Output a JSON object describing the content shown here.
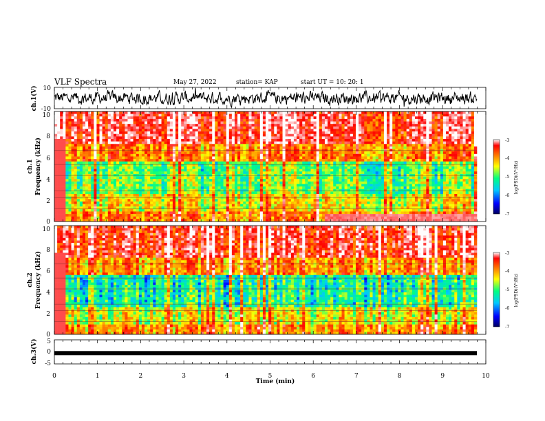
{
  "header": {
    "title": "VLF Spectra",
    "date": "May 27, 2022",
    "station": "station= KAP",
    "start": "start  UT  =   10: 20: 1"
  },
  "chart_data": [
    {
      "type": "line",
      "panel": "ch1-waveform",
      "ylabel": "ch.1(V)",
      "ylim": [
        -10,
        10
      ],
      "ytick_labels": [
        "10",
        "-10"
      ],
      "x_range_min": [
        0,
        9.8
      ],
      "description_values": "noisy voltage trace oscillating roughly between -7 and +7 V"
    },
    {
      "type": "heatmap",
      "panel": "ch1-spectrogram",
      "ylabel": "ch.1\nFrequency (kHz)",
      "ylim": [
        0,
        10
      ],
      "ytick_labels": [
        "0",
        "2",
        "4",
        "6",
        "8",
        "10"
      ],
      "colorbar": {
        "label": "log(PSD)(V²/Hz)",
        "range": [
          -7,
          -3
        ],
        "tick_labels": [
          "-3",
          "-4",
          "-5",
          "-6",
          "-7"
        ],
        "colors": [
          "#000080",
          "#0000ff",
          "#00c8ff",
          "#00ff80",
          "#ffff00",
          "#ff8000",
          "#ff0000",
          "#ffffff"
        ]
      }
    },
    {
      "type": "heatmap",
      "panel": "ch2-spectrogram",
      "ylabel": "ch.2\nFrequency (kHz)",
      "ylim": [
        0,
        10
      ],
      "ytick_labels": [
        "0",
        "2",
        "4",
        "6",
        "8",
        "10"
      ],
      "colorbar": {
        "label": "log(PSD)(V²/Hz)",
        "range": [
          -7,
          -3
        ],
        "tick_labels": [
          "-3",
          "-4",
          "-5",
          "-6",
          "-7"
        ],
        "colors": [
          "#000080",
          "#0000ff",
          "#00c8ff",
          "#00ff80",
          "#ffff00",
          "#ff8000",
          "#ff0000",
          "#ffffff"
        ]
      }
    },
    {
      "type": "line",
      "panel": "ch3-waveform",
      "ylabel": "ch.3(V)",
      "ylim": [
        -5,
        5
      ],
      "ytick_labels": [
        "5",
        "0",
        "-5"
      ],
      "level_v": -0.5
    }
  ],
  "xaxis": {
    "label": "Time (min)",
    "range": [
      0,
      10
    ],
    "tick_labels": [
      "0",
      "1",
      "2",
      "3",
      "4",
      "5",
      "6",
      "7",
      "8",
      "9",
      "10"
    ]
  }
}
